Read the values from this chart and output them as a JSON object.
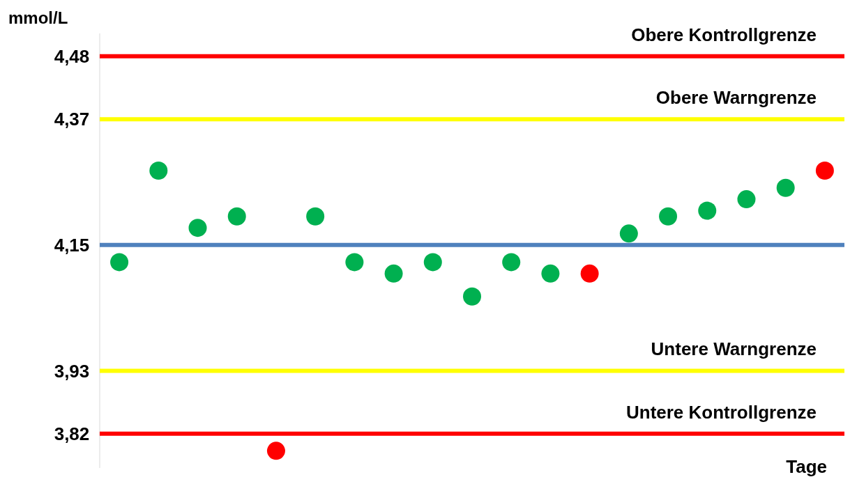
{
  "chart_data": {
    "type": "scatter",
    "ylabel": "mmol/L",
    "xlabel": "Tage",
    "categories": [
      null,
      null,
      null,
      null,
      null,
      null,
      null,
      null,
      null,
      null,
      null,
      null,
      null,
      null,
      null,
      null,
      null,
      null,
      null
    ],
    "values": [
      4.12,
      4.28,
      4.18,
      4.2,
      3.79,
      4.2,
      4.12,
      4.1,
      4.12,
      4.06,
      4.12,
      4.1,
      4.1,
      4.17,
      4.2,
      4.21,
      4.23,
      4.25,
      4.28
    ],
    "colors": [
      "#00b050",
      "#00b050",
      "#00b050",
      "#00b050",
      "#ff0000",
      "#00b050",
      "#00b050",
      "#00b050",
      "#00b050",
      "#00b050",
      "#00b050",
      "#00b050",
      "#ff0000",
      "#00b050",
      "#00b050",
      "#00b050",
      "#00b050",
      "#00b050",
      "#ff0000"
    ],
    "ylim": [
      3.76,
      4.52
    ],
    "yticks": [
      {
        "value": 4.48,
        "label": "4,48"
      },
      {
        "value": 4.37,
        "label": "4,37"
      },
      {
        "value": 4.15,
        "label": "4,15"
      },
      {
        "value": 3.93,
        "label": "3,93"
      },
      {
        "value": 3.82,
        "label": "3,82"
      }
    ],
    "ref_lines": [
      {
        "axis": "y",
        "value": 4.48,
        "label": "Obere Kontrollgrenze",
        "color": "#ff0000"
      },
      {
        "axis": "y",
        "value": 4.37,
        "label": "Obere Warngrenze",
        "color": "#ffff00"
      },
      {
        "axis": "y",
        "value": 4.15,
        "color": "#4f81bd"
      },
      {
        "axis": "y",
        "value": 3.93,
        "label": "Untere Warngrenze",
        "color": "#ffff00"
      },
      {
        "axis": "y",
        "value": 3.82,
        "label": "Untere Kontrollgrenze",
        "color": "#ff0000"
      }
    ],
    "marker": "circle"
  }
}
